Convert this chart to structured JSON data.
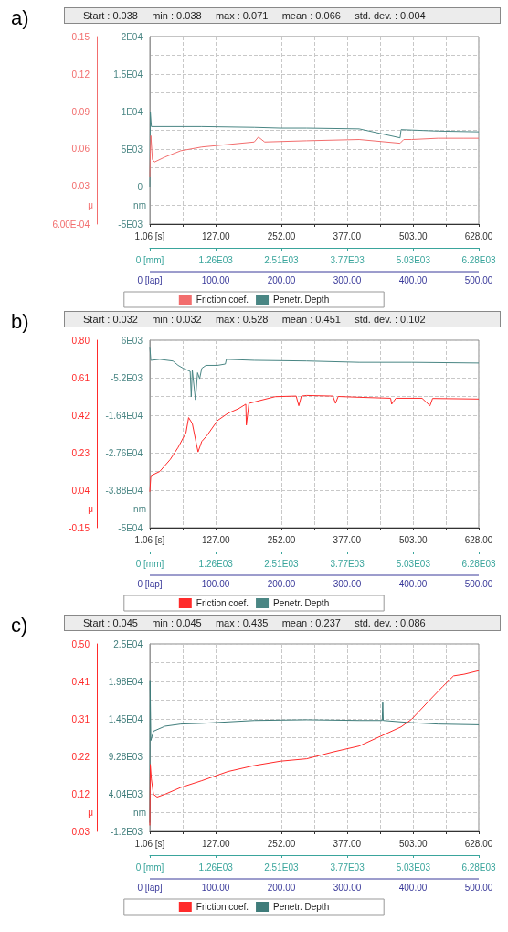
{
  "chart_data": [
    {
      "type": "line",
      "title": "a)",
      "subtitle": "Start : 0.038     min : 0.038     max : 0.071     mean : 0.066     std. dev. : 0.004",
      "ylabel": "μ",
      "y2label": "nm",
      "grid": true,
      "legend": "bottom",
      "marker": "none",
      "xlim": [
        1.06,
        628
      ],
      "xticks": [
        {
          "value": 1.06,
          "label": "1.06 [s]"
        },
        {
          "value": 64,
          "label": null
        },
        {
          "value": 127,
          "label": "127.00"
        },
        {
          "value": 189.5,
          "label": null
        },
        {
          "value": 252,
          "label": "252.00"
        },
        {
          "value": 314.5,
          "label": null
        },
        {
          "value": 377,
          "label": "377.00"
        },
        {
          "value": 440,
          "label": null
        },
        {
          "value": 503,
          "label": "503.00"
        },
        {
          "value": 565.5,
          "label": null
        },
        {
          "value": 628,
          "label": "628.00"
        }
      ],
      "x2lim": [
        0,
        6280
      ],
      "x2ticks": [
        {
          "value": 0,
          "label": "0 [mm]"
        },
        {
          "value": 1260,
          "label": "1.26E03"
        },
        {
          "value": 2510,
          "label": "2.51E03"
        },
        {
          "value": 3770,
          "label": "3.77E03"
        },
        {
          "value": 5030,
          "label": "5.03E03"
        },
        {
          "value": 6280,
          "label": "6.28E03"
        }
      ],
      "annotations": [
        "0 [lap]",
        "100.00",
        "200.00",
        "300.00",
        "400.00",
        "500.00"
      ],
      "ylim": [
        0.0006,
        0.15
      ],
      "yticks": [
        {
          "value": 0.0006,
          "label": "6.00E-04"
        },
        {
          "value": 0.0155,
          "label": null
        },
        {
          "value": 0.0305,
          "label": "0.03"
        },
        {
          "value": 0.0454,
          "label": null
        },
        {
          "value": 0.0604,
          "label": "0.06"
        },
        {
          "value": 0.0753,
          "label": null
        },
        {
          "value": 0.0902,
          "label": "0.09"
        },
        {
          "value": 0.1052,
          "label": null
        },
        {
          "value": 0.1201,
          "label": "0.12"
        },
        {
          "value": 0.1351,
          "label": null
        },
        {
          "value": 0.15,
          "label": "0.15"
        }
      ],
      "y2lim": [
        -5000,
        20000
      ],
      "y2ticks": [
        {
          "value": -5000,
          "label": "-5E03"
        },
        0,
        {
          "value": 5000,
          "label": "5E03"
        },
        {
          "value": 10000,
          "label": "1E04"
        },
        {
          "value": 15000,
          "label": "1.5E04"
        },
        {
          "value": 20000,
          "label": "2E04"
        }
      ],
      "series": [
        {
          "name": "Friction coef.",
          "color": "#f26d6d",
          "x": [
            1.06,
            2,
            3,
            6,
            10,
            30,
            60,
            100,
            150,
            200,
            208,
            220,
            300,
            400,
            478,
            485,
            500,
            550,
            600,
            628
          ],
          "values": [
            0.038,
            0.058,
            0.071,
            0.052,
            0.05,
            0.054,
            0.059,
            0.062,
            0.064,
            0.066,
            0.07,
            0.066,
            0.067,
            0.068,
            0.065,
            0.068,
            0.068,
            0.069,
            0.069,
            0.069
          ]
        },
        {
          "name": "Penetr. Depth",
          "color": "#4a8684",
          "axis": "y2",
          "x": [
            1.06,
            2,
            4,
            100,
            200,
            250,
            300,
            400,
            478,
            480,
            550,
            628
          ],
          "values": [
            0,
            10000,
            8000,
            8000,
            7900,
            7800,
            7800,
            7700,
            6500,
            7600,
            7400,
            7300
          ]
        }
      ]
    },
    {
      "type": "line",
      "title": "b)",
      "subtitle": "Start : 0.032     min : 0.032     max : 0.528     mean : 0.451     std. dev. : 0.102",
      "ylabel": "μ",
      "y2label": "nm",
      "grid": true,
      "legend": "bottom",
      "marker": "none",
      "xlim": [
        1.06,
        628
      ],
      "xticks": [
        {
          "value": 1.06,
          "label": "1.06 [s]"
        },
        {
          "value": 64,
          "label": null
        },
        {
          "value": 127,
          "label": "127.00"
        },
        {
          "value": 189.5,
          "label": null
        },
        {
          "value": 252,
          "label": "252.00"
        },
        {
          "value": 314.5,
          "label": null
        },
        {
          "value": 377,
          "label": "377.00"
        },
        {
          "value": 440,
          "label": null
        },
        {
          "value": 503,
          "label": "503.00"
        },
        {
          "value": 565.5,
          "label": null
        },
        {
          "value": 628,
          "label": "628.00"
        }
      ],
      "x2lim": [
        0,
        6280
      ],
      "x2ticks": [
        {
          "value": 0,
          "label": "0 [mm]"
        },
        {
          "value": 1260,
          "label": "1.26E03"
        },
        {
          "value": 2510,
          "label": "2.51E03"
        },
        {
          "value": 3770,
          "label": "3.77E03"
        },
        {
          "value": 5030,
          "label": "5.03E03"
        },
        {
          "value": 6280,
          "label": "6.28E03"
        }
      ],
      "annotations": [
        "0 [lap]",
        "100.00",
        "200.00",
        "300.00",
        "400.00",
        "500.00"
      ],
      "ylim": [
        -0.15,
        0.8
      ],
      "yticks": [
        -0.15,
        {
          "value": -0.055,
          "label": null
        },
        0.04,
        {
          "value": 0.135,
          "label": null
        },
        0.23,
        {
          "value": 0.325,
          "label": null
        },
        0.42,
        {
          "value": 0.515,
          "label": null
        },
        0.61,
        {
          "value": 0.705,
          "label": null
        },
        {
          "value": 0.8,
          "label": "0.80"
        }
      ],
      "y2lim": [
        -50000,
        6000
      ],
      "y2ticks": [
        {
          "value": -50000,
          "label": "-5E04"
        },
        {
          "value": -38800,
          "label": "-3.88E04"
        },
        {
          "value": -27600,
          "label": "-2.76E04"
        },
        {
          "value": -16400,
          "label": "-1.64E04"
        },
        {
          "value": -5200,
          "label": "-5.2E03"
        },
        {
          "value": 6000,
          "label": "6E03"
        }
      ],
      "series": [
        {
          "name": "Friction coef.",
          "color": "#ff2a2a",
          "x": [
            1.06,
            3,
            20,
            40,
            55,
            70,
            75,
            82,
            90,
            93,
            100,
            110,
            130,
            150,
            170,
            184,
            185,
            190,
            210,
            240,
            280,
            285,
            290,
            300,
            350,
            355,
            360,
            400,
            460,
            462,
            470,
            520,
            535,
            540,
            628
          ],
          "values": [
            0.032,
            0.113,
            0.135,
            0.196,
            0.257,
            0.332,
            0.408,
            0.378,
            0.272,
            0.234,
            0.287,
            0.317,
            0.393,
            0.43,
            0.453,
            0.476,
            0.37,
            0.48,
            0.494,
            0.514,
            0.517,
            0.468,
            0.517,
            0.52,
            0.517,
            0.48,
            0.515,
            0.511,
            0.506,
            0.476,
            0.506,
            0.506,
            0.468,
            0.505,
            0.502
          ]
        },
        {
          "name": "Penetr. Depth",
          "color": "#4a8684",
          "axis": "y2",
          "x": [
            1.06,
            3,
            20,
            45,
            55,
            65,
            78,
            80,
            82,
            88,
            92,
            96,
            100,
            108,
            130,
            145,
            147,
            200,
            300,
            400,
            500,
            628
          ],
          "values": [
            4000,
            0,
            300,
            -200,
            -1500,
            -2400,
            -3300,
            -10900,
            -2900,
            -11800,
            -3700,
            -5500,
            -2400,
            -1500,
            -1500,
            -1100,
            300,
            0,
            -200,
            -600,
            -600,
            -800
          ]
        }
      ]
    },
    {
      "type": "line",
      "title": "c)",
      "subtitle": "Start : 0.045     min : 0.045     max : 0.435     mean : 0.237     std. dev. : 0.086",
      "ylabel": "μ",
      "y2label": "nm",
      "grid": true,
      "legend": "bottom",
      "marker": "none",
      "xlim": [
        1.06,
        628
      ],
      "xticks": [
        {
          "value": 1.06,
          "label": "1.06 [s]"
        },
        {
          "value": 64,
          "label": null
        },
        {
          "value": 127,
          "label": "127.00"
        },
        {
          "value": 189.5,
          "label": null
        },
        {
          "value": 252,
          "label": "252.00"
        },
        {
          "value": 314.5,
          "label": null
        },
        {
          "value": 377,
          "label": "377.00"
        },
        {
          "value": 440,
          "label": null
        },
        {
          "value": 503,
          "label": "503.00"
        },
        {
          "value": 565.5,
          "label": null
        },
        {
          "value": 628,
          "label": "628.00"
        }
      ],
      "x2lim": [
        0,
        6280
      ],
      "x2ticks": [
        {
          "value": 0,
          "label": "0 [mm]"
        },
        {
          "value": 1260,
          "label": "1.26E03"
        },
        {
          "value": 2510,
          "label": "2.51E03"
        },
        {
          "value": 3770,
          "label": "3.77E03"
        },
        {
          "value": 5030,
          "label": "5.03E03"
        },
        {
          "value": 6280,
          "label": "6.28E03"
        }
      ],
      "annotations": [
        "0 [lap]",
        "100.00",
        "200.00",
        "300.00",
        "400.00",
        "500.00"
      ],
      "ylim": [
        0.03,
        0.5
      ],
      "yticks": [
        0.03,
        {
          "value": 0.077,
          "label": null
        },
        {
          "value": 0.124,
          "label": "0.12"
        },
        {
          "value": 0.171,
          "label": null
        },
        {
          "value": 0.218,
          "label": "0.22"
        },
        {
          "value": 0.265,
          "label": null
        },
        {
          "value": 0.312,
          "label": "0.31"
        },
        {
          "value": 0.359,
          "label": null
        },
        {
          "value": 0.406,
          "label": "0.41"
        },
        {
          "value": 0.453,
          "label": null
        },
        {
          "value": 0.5,
          "label": "0.50"
        }
      ],
      "y2lim": [
        -1200,
        25000
      ],
      "y2ticks": [
        {
          "value": -1200,
          "label": "-1.2E03"
        },
        {
          "value": 4040,
          "label": "4.04E03"
        },
        {
          "value": 9280,
          "label": "9.28E03"
        },
        {
          "value": 14520,
          "label": "1.45E04"
        },
        {
          "value": 19760,
          "label": "1.98E04"
        },
        {
          "value": 25000,
          "label": "2.5E04"
        }
      ],
      "series": [
        {
          "name": "Friction coef.",
          "color": "#ff2a2a",
          "x": [
            1.06,
            2,
            4,
            8,
            15,
            30,
            60,
            100,
            150,
            200,
            250,
            300,
            350,
            400,
            450,
            480,
            500,
            530,
            560,
            580,
            600,
            628
          ],
          "values": [
            0.045,
            0.198,
            0.161,
            0.123,
            0.116,
            0.123,
            0.14,
            0.157,
            0.18,
            0.195,
            0.206,
            0.212,
            0.229,
            0.244,
            0.274,
            0.292,
            0.311,
            0.353,
            0.394,
            0.42,
            0.424,
            0.433
          ]
        },
        {
          "name": "Penetr. Depth",
          "color": "#3f7c7a",
          "axis": "y2",
          "x": [
            1.06,
            1.5,
            3,
            8,
            30,
            60,
            100,
            200,
            300,
            400,
            444,
            445,
            446,
            480,
            500,
            550,
            628
          ],
          "values": [
            0,
            19800,
            11500,
            12800,
            13500,
            13800,
            13900,
            14300,
            14400,
            14300,
            14300,
            16800,
            14300,
            14100,
            14000,
            13800,
            13700
          ]
        }
      ]
    }
  ]
}
